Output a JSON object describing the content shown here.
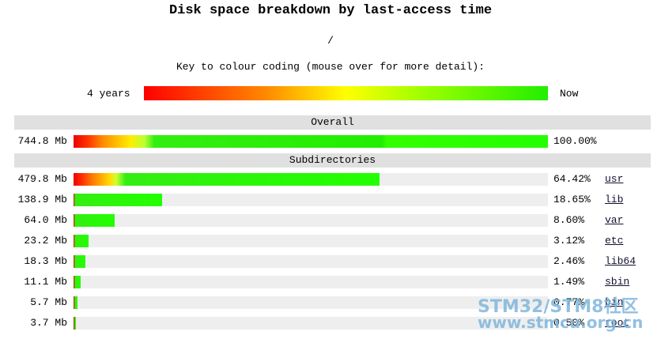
{
  "header": {
    "title": "Disk space breakdown by last-access time",
    "path": "/",
    "key_text": "Key to colour coding (mouse over for more detail):",
    "key_old": "4 years",
    "key_new": "Now"
  },
  "overall": {
    "heading": "Overall",
    "size": "744.8 Mb",
    "share": 100,
    "share_label": "100.00%"
  },
  "subdirectories": {
    "heading": "Subdirectories",
    "rows": [
      {
        "size": "479.8 Mb",
        "share": 64.42,
        "share_label": "64.42%",
        "name": "usr"
      },
      {
        "size": "138.9 Mb",
        "share": 18.65,
        "share_label": "18.65%",
        "name": "lib"
      },
      {
        "size": "64.0 Mb",
        "share": 8.6,
        "share_label": "8.60%",
        "name": "var"
      },
      {
        "size": "23.2 Mb",
        "share": 3.12,
        "share_label": "3.12%",
        "name": "etc"
      },
      {
        "size": "18.3 Mb",
        "share": 2.46,
        "share_label": "2.46%",
        "name": "lib64"
      },
      {
        "size": "11.1 Mb",
        "share": 1.49,
        "share_label": "1.49%",
        "name": "sbin"
      },
      {
        "size": "5.7 Mb",
        "share": 0.77,
        "share_label": "0.77%",
        "name": "bin"
      },
      {
        "size": "3.7 Mb",
        "share": 0.5,
        "share_label": "0.50%",
        "name": "root"
      }
    ]
  },
  "watermark": {
    "line1": "STM32/STM8社区",
    "line2": "www.stmcu.org.cn"
  }
}
